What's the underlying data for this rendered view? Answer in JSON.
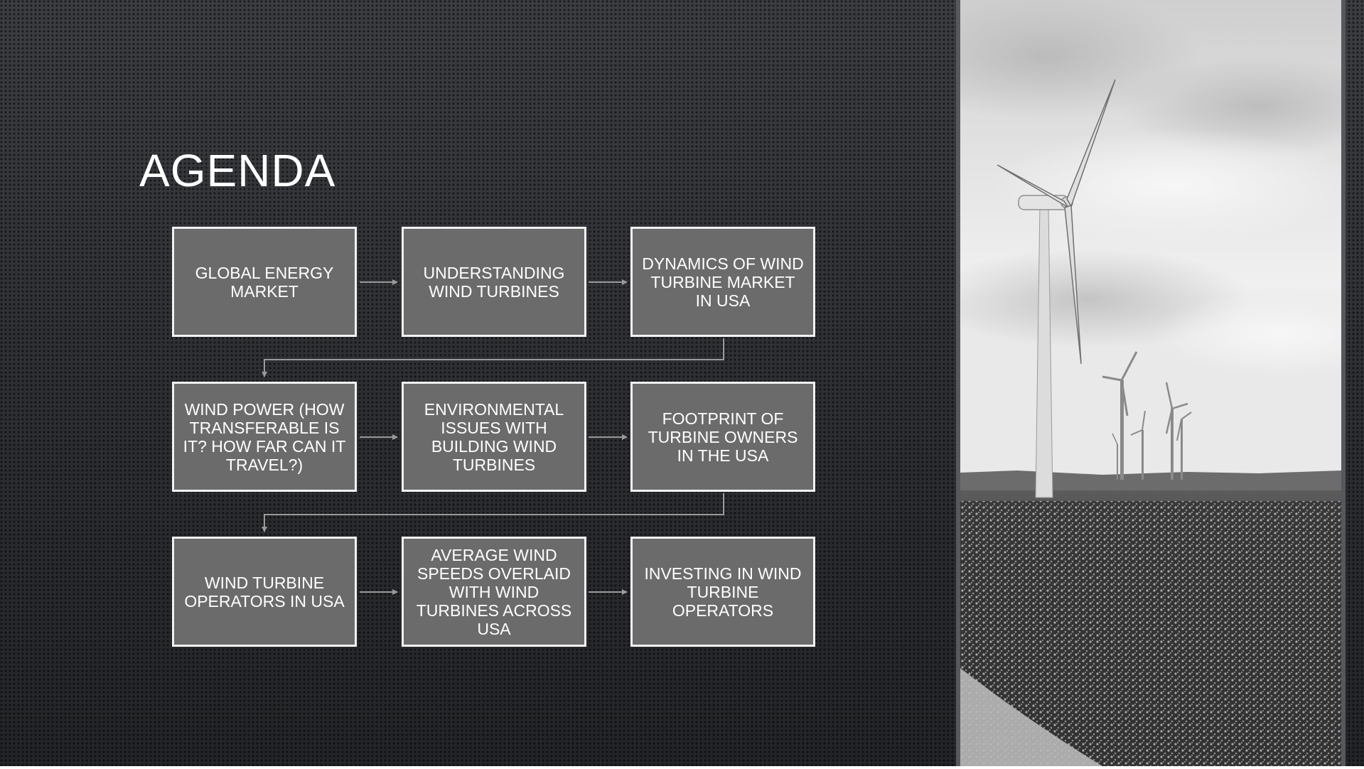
{
  "slide": {
    "title": "AGENDA",
    "agenda_items": [
      "GLOBAL ENERGY MARKET",
      "UNDERSTANDING WIND TURBINES",
      "DYNAMICS OF WIND TURBINE MARKET IN USA",
      "WIND POWER (HOW TRANSFERABLE IS IT? HOW FAR CAN IT TRAVEL?)",
      "ENVIRONMENTAL ISSUES WITH BUILDING WIND TURBINES",
      "FOOTPRINT OF TURBINE OWNERS IN THE USA",
      "WIND TURBINE OPERATORS IN USA",
      "AVERAGE WIND SPEEDS OVERLAID WITH WIND TURBINES ACROSS USA",
      "INVESTING IN WIND TURBINE OPERATORS"
    ]
  },
  "colors": {
    "box_fill": "#6b6b6b",
    "box_border": "#f2f2f2",
    "connector": "#9a9a9a",
    "text": "#ffffff"
  },
  "image": {
    "icon": "wind-turbine-field-photo"
  }
}
